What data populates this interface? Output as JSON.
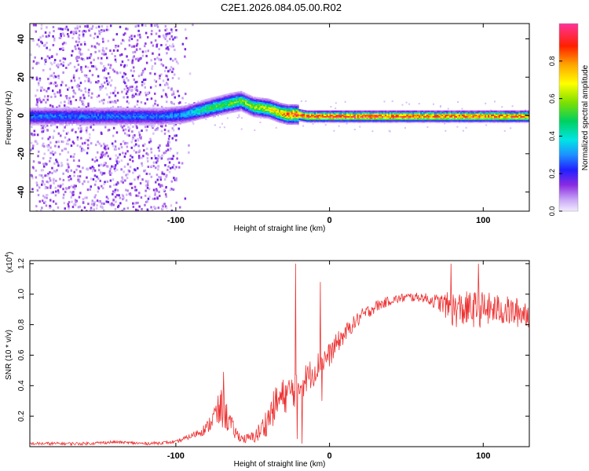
{
  "title": "C2E1.2026.084.05.00.R02",
  "chart_data": [
    {
      "type": "heatmap",
      "xlabel": "Height of straight line (km)",
      "ylabel": "Frequency (Hz)",
      "xlim": [
        -195,
        130
      ],
      "ylim": [
        -50,
        48
      ],
      "xticks": [
        -100,
        0,
        100
      ],
      "yticks": [
        -40,
        -20,
        0,
        20,
        40
      ],
      "colorbar": {
        "label": "Normalized spectral amplitude",
        "range": [
          0,
          1
        ],
        "ticks": [
          0.0,
          0.2,
          0.4,
          0.6,
          0.8
        ]
      },
      "ridge": {
        "description_values": "centre frequency (Hz) vs height (km)",
        "x": [
          -195,
          -160,
          -130,
          -110,
          -95,
          -85,
          -75,
          -65,
          -58,
          -50,
          -40,
          -33,
          -28,
          -22,
          -15,
          -10,
          0,
          40,
          80,
          130
        ],
        "freq": [
          0,
          0,
          0,
          0,
          1,
          3,
          5,
          7,
          8,
          5,
          4,
          2,
          1,
          1,
          0,
          0,
          0,
          0,
          0,
          0
        ],
        "amplitude": [
          0.3,
          0.3,
          0.3,
          0.3,
          0.35,
          0.45,
          0.55,
          0.6,
          0.6,
          0.65,
          0.7,
          0.8,
          0.9,
          0.95,
          0.95,
          0.95,
          0.95,
          0.95,
          0.9,
          0.9
        ]
      },
      "noise_region_x": [
        -195,
        -100
      ]
    },
    {
      "type": "line",
      "xlabel": "Height of straight line (km)",
      "ylabel": "SNR (10 * v/v)",
      "exponent_label": "(x10",
      "exponent_value": "4",
      "exponent_close": ")",
      "xlim": [
        -195,
        130
      ],
      "ylim": [
        0,
        1.22
      ],
      "xticks": [
        -100,
        0,
        100
      ],
      "yticks": [
        0.2,
        0.4,
        0.6,
        0.8,
        1.0,
        1.2
      ],
      "ytick_labels": [
        "0.2",
        "0.4",
        "0.6",
        "0.8",
        "1.0",
        "1.2"
      ],
      "series": [
        {
          "name": "SNR",
          "color": "#ee3333",
          "x": [
            -195,
            -160,
            -140,
            -120,
            -100,
            -90,
            -80,
            -75,
            -70,
            -66,
            -62,
            -58,
            -55,
            -50,
            -45,
            -40,
            -35,
            -30,
            -25,
            -20,
            -15,
            -10,
            -5,
            0,
            5,
            10,
            15,
            20,
            30,
            40,
            50,
            60,
            70,
            75,
            80,
            90,
            100,
            110,
            120,
            130
          ],
          "y": [
            0.02,
            0.02,
            0.03,
            0.02,
            0.03,
            0.07,
            0.12,
            0.2,
            0.25,
            0.18,
            0.1,
            0.06,
            0.05,
            0.06,
            0.1,
            0.18,
            0.28,
            0.33,
            0.36,
            0.4,
            0.45,
            0.5,
            0.56,
            0.6,
            0.68,
            0.74,
            0.8,
            0.85,
            0.92,
            0.96,
            0.98,
            0.98,
            0.95,
            0.93,
            0.9,
            0.9,
            0.9,
            0.9,
            0.88,
            0.88
          ],
          "noise": [
            0.01,
            0.01,
            0.01,
            0.01,
            0.01,
            0.02,
            0.04,
            0.08,
            0.14,
            0.09,
            0.05,
            0.03,
            0.03,
            0.04,
            0.07,
            0.1,
            0.12,
            0.12,
            0.12,
            0.12,
            0.1,
            0.1,
            0.09,
            0.08,
            0.07,
            0.06,
            0.05,
            0.05,
            0.04,
            0.03,
            0.03,
            0.03,
            0.05,
            0.08,
            0.12,
            0.12,
            0.12,
            0.1,
            0.1,
            0.1
          ],
          "spikes": [
            {
              "x": -69,
              "y": 0.49
            },
            {
              "x": -22,
              "y": 1.2
            },
            {
              "x": -21,
              "y": 0.05
            },
            {
              "x": -18,
              "y": 0.02
            },
            {
              "x": -6,
              "y": 1.08
            },
            {
              "x": -5,
              "y": 0.3
            },
            {
              "x": 79,
              "y": 1.2
            },
            {
              "x": 97,
              "y": 1.2
            }
          ]
        }
      ]
    }
  ]
}
